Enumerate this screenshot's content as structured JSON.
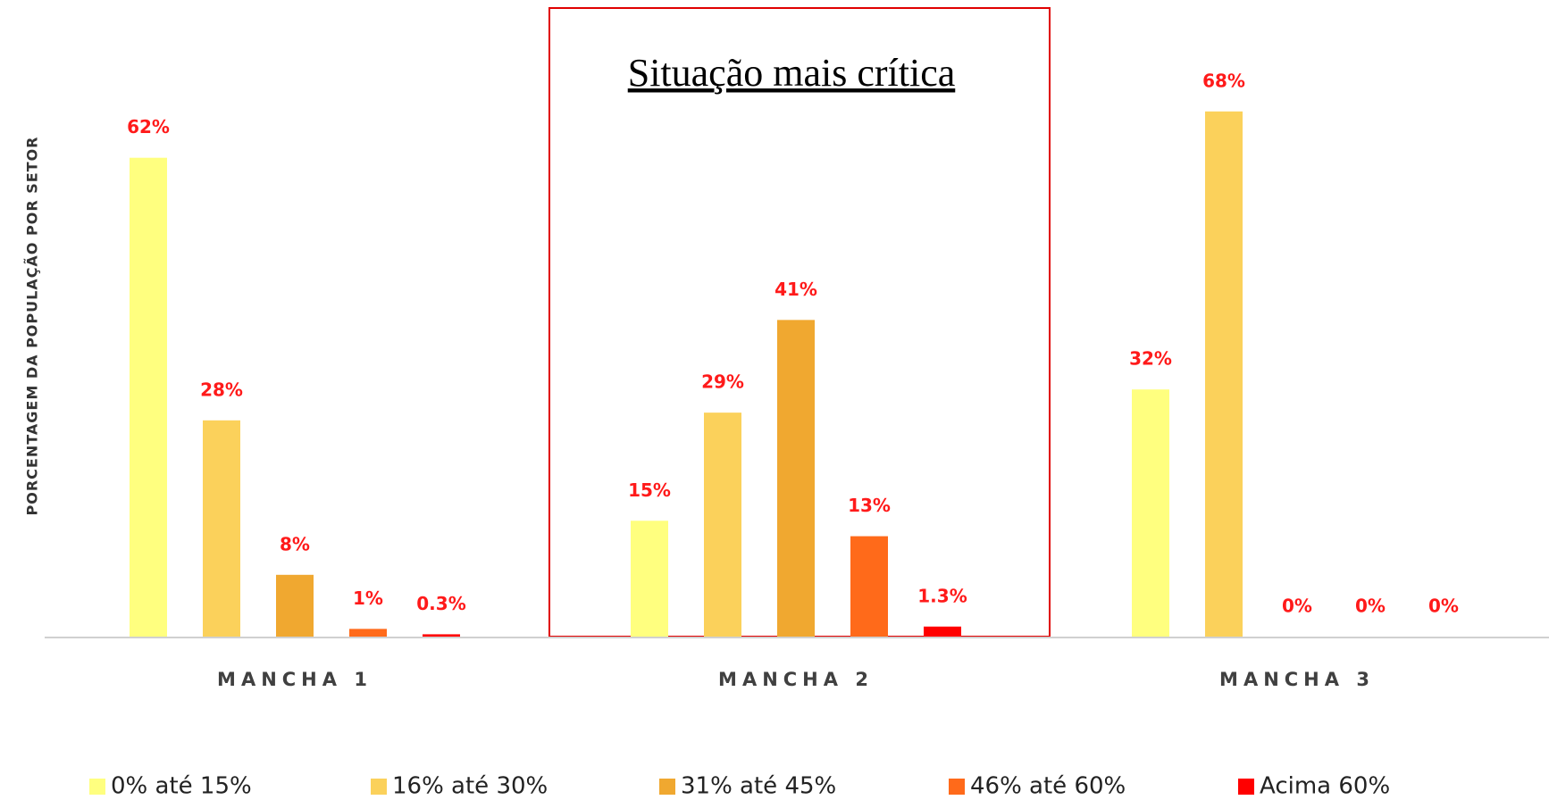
{
  "chart_data": {
    "type": "bar",
    "y_label": "PORCENTAGEM DA POPULAÇÃO POR SETOR",
    "annotation": "Situação mais crítica",
    "categories": [
      "MANCHA 1",
      "MANCHA 2",
      "MANCHA 3"
    ],
    "series": [
      {
        "name": "0% até 15%",
        "color": "#FFFF7F",
        "values": [
          62,
          15,
          32
        ],
        "value_labels": [
          "62%",
          "15%",
          "32%"
        ]
      },
      {
        "name": "16% até 30%",
        "color": "#FBD15B",
        "values": [
          28,
          29,
          68
        ],
        "value_labels": [
          "28%",
          "29%",
          "68%"
        ]
      },
      {
        "name": "31% até 45%",
        "color": "#F0A830",
        "values": [
          8,
          41,
          0
        ],
        "value_labels": [
          "8%",
          "41%",
          "0%"
        ]
      },
      {
        "name": "46% até 60%",
        "color": "#FF6A1A",
        "values": [
          1,
          13,
          0
        ],
        "value_labels": [
          "1%",
          "13%",
          "0%"
        ]
      },
      {
        "name": "Acima 60%",
        "color": "#FF0000",
        "values": [
          0.3,
          1.3,
          0
        ],
        "value_labels": [
          "0.3%",
          "1.3%",
          "0%"
        ]
      }
    ],
    "grid": false,
    "legend": "bottom"
  }
}
